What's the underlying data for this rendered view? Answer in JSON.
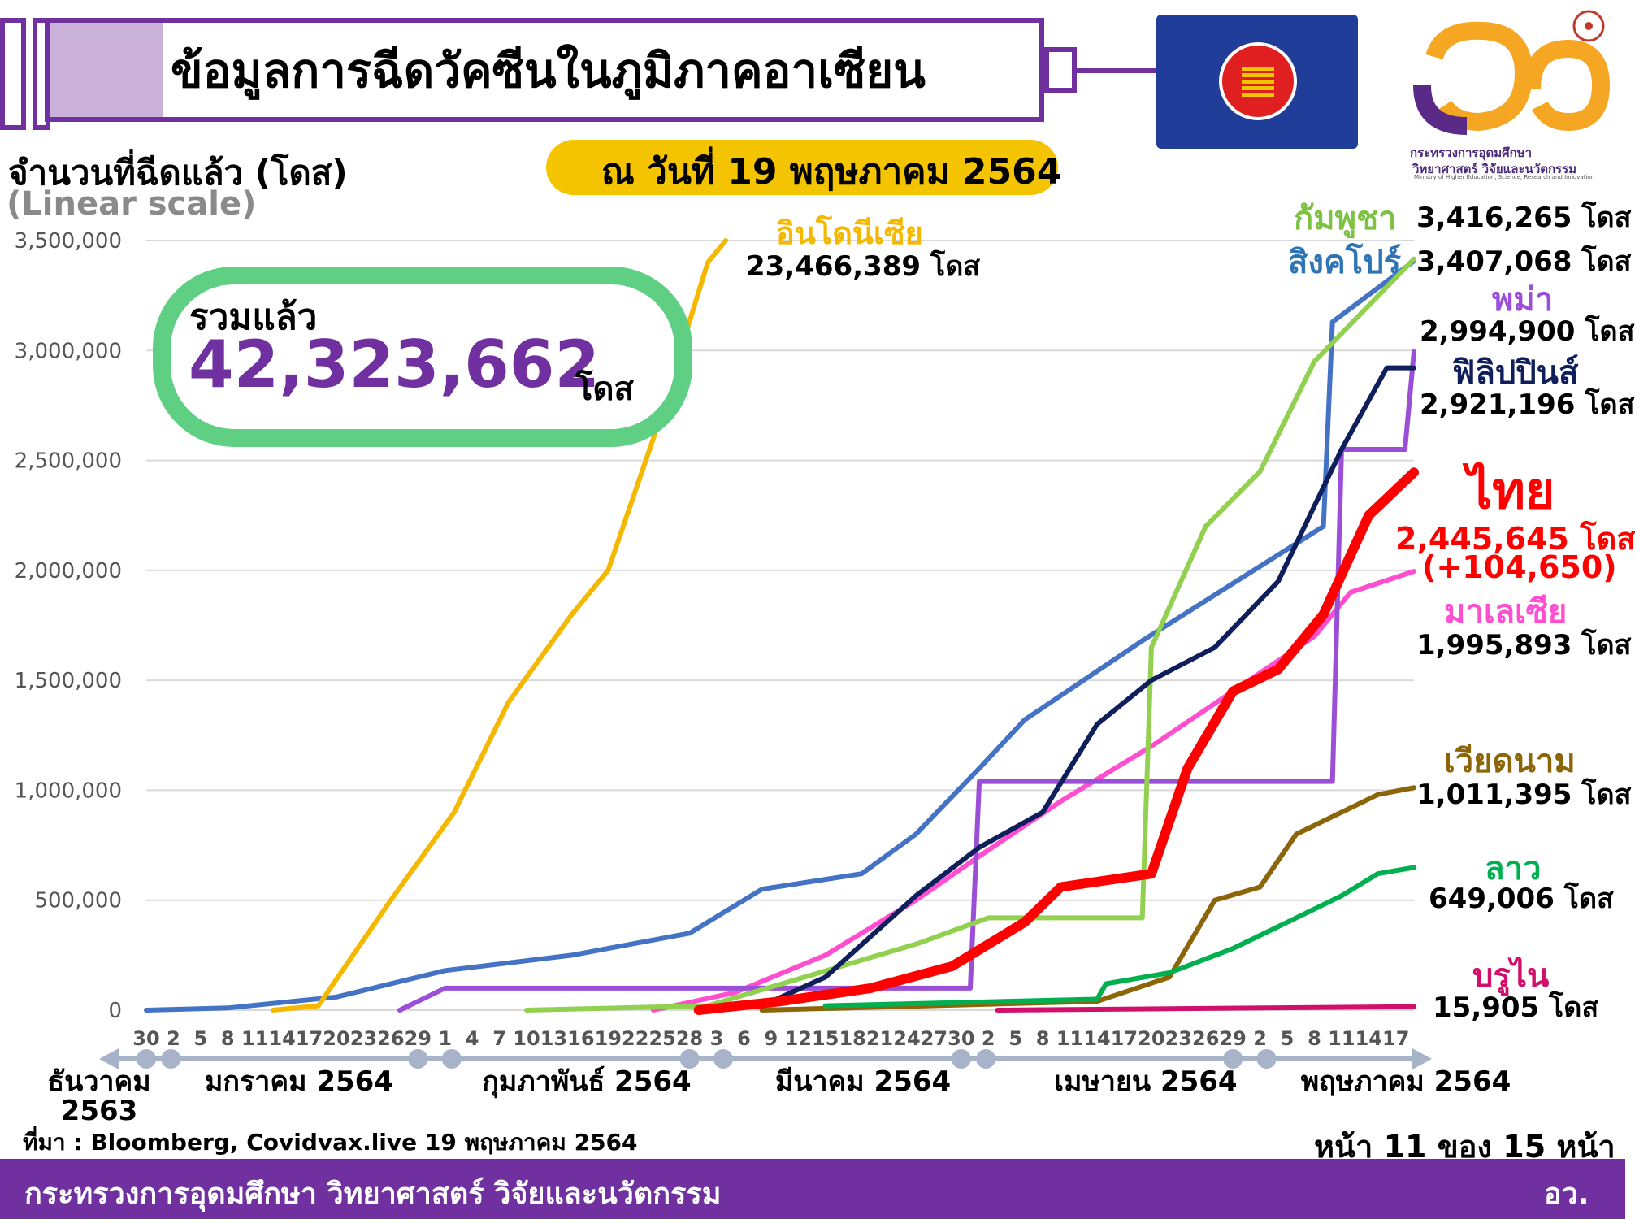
{
  "title": "ข้อมูลการฉีดวัคซีนในภูมิภาคอาเซียน",
  "date": "ณ วันที่ 19 พฤษภาคม 2564",
  "ylabel": "จำนวนที่ฉีดแล้ว (โดส)",
  "scale_note": "(Linear scale)",
  "total": {
    "label": "รวมแล้ว",
    "value": "42,323,662",
    "unit": "โดส"
  },
  "logo": {
    "line1": "กระทรวงการอุดมศึกษา",
    "line2": "วิทยาศาสตร์ วิจัยและนวัตกรรม",
    "line3": "Ministry of Higher Education, Science, Research and Innovation"
  },
  "source": "ที่มา : Bloomberg, Covidvax.live 19 พฤษภาคม 2564",
  "page": "หน้า 11 ของ 15 หน้า",
  "footer": {
    "left": "กระทรวงการอุดมศึกษา วิทยาศาสตร์ วิจัยและนวัตกรรม",
    "right": "อว."
  },
  "labels": {
    "indonesia": {
      "name": "อินโดนีเซีย",
      "value": "23,466,389 โดส"
    },
    "cambodia": {
      "name": "กัมพูชา",
      "value": "3,416,265 โดส"
    },
    "singapore": {
      "name": "สิงคโปร์",
      "value": "3,407,068 โดส"
    },
    "myanmar": {
      "name": "พม่า",
      "value": "2,994,900 โดส"
    },
    "philippines": {
      "name": "ฟิลิปปินส์",
      "value": "2,921,196 โดส"
    },
    "thailand": {
      "name": "ไทย",
      "value": "2,445,645 โดส",
      "delta": "(+104,650)"
    },
    "malaysia": {
      "name": "มาเลเซีย",
      "value": "1,995,893 โดส"
    },
    "vietnam": {
      "name": "เวียดนาม",
      "value": "1,011,395 โดส"
    },
    "laos": {
      "name": "ลาว",
      "value": "649,006 โดส"
    },
    "brunei": {
      "name": "บรูไน",
      "value": "15,905 โดส"
    }
  },
  "chart_data": {
    "type": "line",
    "ylim": [
      0,
      3500000
    ],
    "yticks": [
      "3,500,000",
      "3,000,000",
      "2,500,000",
      "2,000,000",
      "1,500,000",
      "1,000,000",
      "500,000",
      "0"
    ],
    "ytick_values": [
      3500000,
      3000000,
      2500000,
      2000000,
      1500000,
      1000000,
      500000,
      0
    ],
    "x_ticks": [
      "30",
      "2",
      "5",
      "8",
      "11",
      "14",
      "17",
      "20",
      "23",
      "26",
      "29",
      "1",
      "4",
      "7",
      "10",
      "13",
      "16",
      "19",
      "22",
      "25",
      "28",
      "3",
      "6",
      "9",
      "12",
      "15",
      "18",
      "21",
      "24",
      "27",
      "30",
      "2",
      "5",
      "8",
      "11",
      "14",
      "17",
      "20",
      "23",
      "26",
      "29",
      "2",
      "5",
      "8",
      "11",
      "14",
      "17"
    ],
    "months": [
      {
        "label": "ธันวาคม\n2563"
      },
      {
        "label": "มกราคม 2564"
      },
      {
        "label": "กุมภาพันธ์ 2564"
      },
      {
        "label": "มีนาคม 2564"
      },
      {
        "label": "เมษายน 2564"
      },
      {
        "label": "พฤษภาคม 2564"
      }
    ],
    "series": [
      {
        "name": "อินโดนีเซีย",
        "color": "#f5b800",
        "width": 6,
        "x": [
          "2021-01-13",
          "2021-01-18",
          "2021-01-20",
          "2021-01-26",
          "2021-02-02",
          "2021-02-08",
          "2021-02-15",
          "2021-02-19",
          "2021-02-24",
          "2021-03-02",
          "2021-03-04"
        ],
        "y": [
          0,
          20000,
          140000,
          500000,
          900000,
          1400000,
          1800000,
          2000000,
          2600000,
          3400000,
          3500000
        ]
      },
      {
        "name": "กัมพูชา",
        "color": "#92d050",
        "width": 6,
        "x": [
          "2021-02-10",
          "2021-03-02",
          "2021-03-25",
          "2021-04-02",
          "2021-04-19",
          "2021-04-20",
          "2021-04-26",
          "2021-05-02",
          "2021-05-08",
          "2021-05-19"
        ],
        "y": [
          0,
          20000,
          300000,
          420000,
          420000,
          1650000,
          2200000,
          2450000,
          2950000,
          3416265
        ]
      },
      {
        "name": "สิงคโปร์",
        "color": "#4472c4",
        "width": 6,
        "x": [
          "2020-12-30",
          "2021-01-08",
          "2021-01-20",
          "2021-02-01",
          "2021-02-15",
          "2021-02-28",
          "2021-03-08",
          "2021-03-19",
          "2021-03-25",
          "2021-04-01",
          "2021-04-06",
          "2021-04-19",
          "2021-05-09",
          "2021-05-10",
          "2021-05-19"
        ],
        "y": [
          0,
          10000,
          60000,
          180000,
          250000,
          350000,
          550000,
          620000,
          800000,
          1100000,
          1320000,
          1680000,
          2200000,
          3130000,
          3407068
        ]
      },
      {
        "name": "พม่า",
        "color": "#9b4fd6",
        "width": 6,
        "x": [
          "2021-01-27",
          "2021-02-01",
          "2021-03-31",
          "2021-04-01",
          "2021-05-10",
          "2021-05-11",
          "2021-05-18",
          "2021-05-19"
        ],
        "y": [
          0,
          100000,
          100000,
          1040000,
          1040000,
          2550000,
          2550000,
          2994900
        ]
      },
      {
        "name": "ฟิลิปปินส์",
        "color": "#0f1f5c",
        "width": 6,
        "x": [
          "2021-03-01",
          "2021-03-08",
          "2021-03-15",
          "2021-03-25",
          "2021-04-01",
          "2021-04-08",
          "2021-04-14",
          "2021-04-20",
          "2021-04-27",
          "2021-05-04",
          "2021-05-11",
          "2021-05-16",
          "2021-05-19"
        ],
        "y": [
          0,
          20000,
          150000,
          520000,
          740000,
          900000,
          1300000,
          1500000,
          1650000,
          1950000,
          2550000,
          2921196,
          2921196
        ]
      },
      {
        "name": "ไทย",
        "color": "#ff0000",
        "width": 12,
        "x": [
          "2021-03-01",
          "2021-03-10",
          "2021-03-20",
          "2021-03-29",
          "2021-04-06",
          "2021-04-10",
          "2021-04-20",
          "2021-04-24",
          "2021-04-29",
          "2021-05-04",
          "2021-05-09",
          "2021-05-14",
          "2021-05-19"
        ],
        "y": [
          0,
          40000,
          100000,
          200000,
          400000,
          560000,
          620000,
          1100000,
          1450000,
          1550000,
          1800000,
          2250000,
          2445645
        ]
      },
      {
        "name": "มาเลเซีย",
        "color": "#ff4fd0",
        "width": 6,
        "x": [
          "2021-02-24",
          "2021-03-05",
          "2021-03-15",
          "2021-03-25",
          "2021-04-01",
          "2021-04-10",
          "2021-04-20",
          "2021-04-29",
          "2021-05-08",
          "2021-05-12",
          "2021-05-19"
        ],
        "y": [
          0,
          80000,
          250000,
          500000,
          700000,
          950000,
          1200000,
          1450000,
          1700000,
          1900000,
          1995893
        ]
      },
      {
        "name": "เวียดนาม",
        "color": "#8b6508",
        "width": 6,
        "x": [
          "2021-03-08",
          "2021-04-14",
          "2021-04-22",
          "2021-04-27",
          "2021-05-02",
          "2021-05-06",
          "2021-05-11",
          "2021-05-15",
          "2021-05-19"
        ],
        "y": [
          0,
          40000,
          150000,
          500000,
          560000,
          800000,
          900000,
          980000,
          1011395
        ]
      },
      {
        "name": "ลาว",
        "color": "#00b050",
        "width": 6,
        "x": [
          "2021-03-15",
          "2021-04-14",
          "2021-04-15",
          "2021-04-22",
          "2021-04-29",
          "2021-05-05",
          "2021-05-11",
          "2021-05-15",
          "2021-05-19"
        ],
        "y": [
          20000,
          50000,
          120000,
          170000,
          280000,
          400000,
          520000,
          620000,
          649006
        ]
      },
      {
        "name": "บรูไน",
        "color": "#d0106a",
        "width": 6,
        "x": [
          "2021-04-03",
          "2021-05-19"
        ],
        "y": [
          0,
          15905
        ]
      }
    ]
  }
}
